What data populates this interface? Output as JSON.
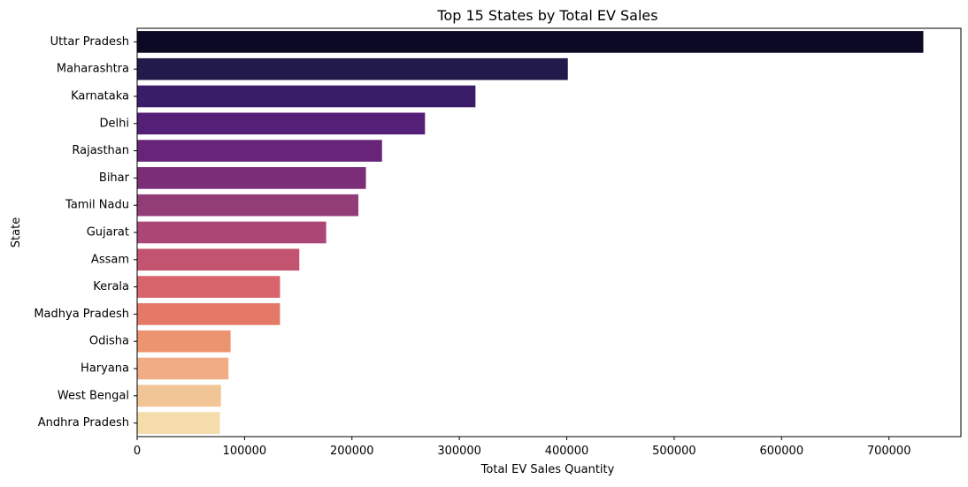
{
  "chart_data": {
    "type": "bar",
    "orientation": "horizontal",
    "title": "Top 15 States by Total EV Sales",
    "xlabel": "Total EV Sales Quantity",
    "ylabel": "State",
    "xlim": [
      0,
      767000
    ],
    "xticks": [
      0,
      100000,
      200000,
      300000,
      400000,
      500000,
      600000,
      700000
    ],
    "xtick_labels": [
      "0",
      "100000",
      "200000",
      "300000",
      "400000",
      "500000",
      "600000",
      "700000"
    ],
    "grid": false,
    "legend": "none",
    "palette": "magma",
    "categories": [
      "Uttar Pradesh",
      "Maharashtra",
      "Karnataka",
      "Delhi",
      "Rajasthan",
      "Bihar",
      "Tamil Nadu",
      "Gujarat",
      "Assam",
      "Kerala",
      "Madhya Pradesh",
      "Odisha",
      "Haryana",
      "West Bengal",
      "Andhra Pradesh"
    ],
    "values": [
      732000,
      401000,
      315000,
      268000,
      228000,
      213000,
      206000,
      176000,
      151000,
      133000,
      133000,
      87000,
      85000,
      78000,
      77000
    ],
    "colors": [
      "#0b0924",
      "#221a4a",
      "#3a1d68",
      "#531f77",
      "#672479",
      "#7b2d78",
      "#933d76",
      "#ab4774",
      "#c3546f",
      "#d8646c",
      "#e57968",
      "#ec9470",
      "#f0ac85",
      "#f2c597",
      "#f4dcab"
    ]
  }
}
